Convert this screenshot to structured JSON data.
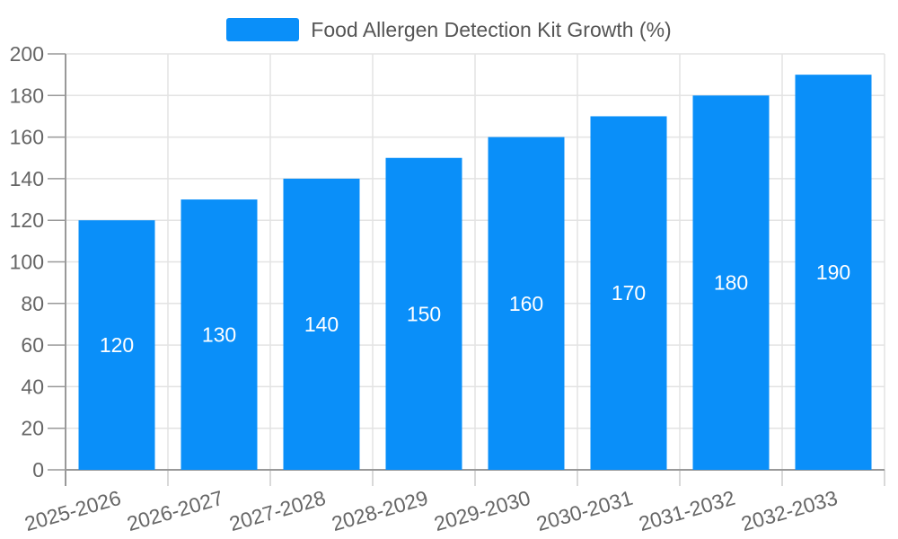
{
  "chart_data": {
    "type": "bar",
    "title": "Food Allergen Detection Kit Growth (%)",
    "legend": {
      "label": "Food Allergen Detection Kit Growth (%)",
      "position": "top"
    },
    "categories": [
      "2025-2026",
      "2026-2027",
      "2027-2028",
      "2028-2029",
      "2029-2030",
      "2030-2031",
      "2031-2032",
      "2032-2033"
    ],
    "values": [
      120,
      130,
      140,
      150,
      160,
      170,
      180,
      190
    ],
    "xlabel": "",
    "ylabel": "",
    "ylim": [
      0,
      200
    ],
    "ytick_step": 20,
    "grid": true,
    "value_labels": "inside-center",
    "x_label_rotation_deg": -16,
    "colors": {
      "bar": "#0a8ff9",
      "grid": "#e3e3e3",
      "axis": "#999999",
      "tick_text": "#666666",
      "title_text": "#555555",
      "value_label": "#ffffff",
      "background": "#ffffff"
    }
  }
}
